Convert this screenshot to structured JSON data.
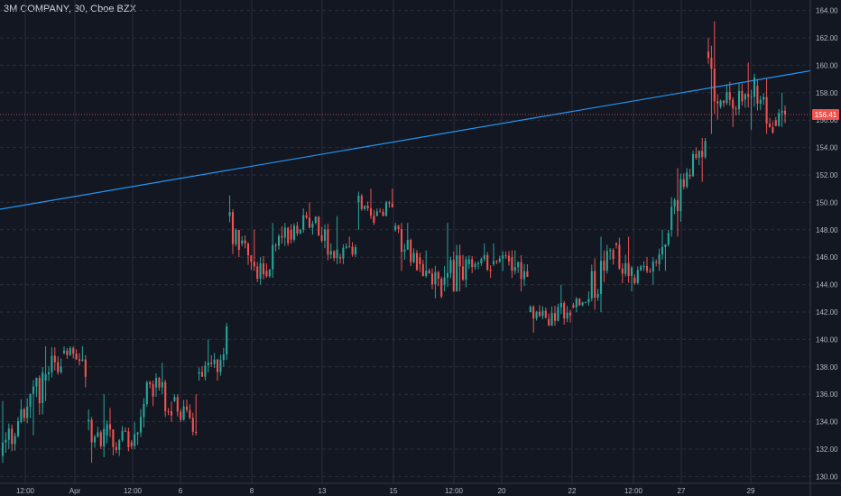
{
  "header": {
    "title": "3M COMPANY, 30, Cboe BZX"
  },
  "colors": {
    "background": "#131722",
    "grid": "#2a2e39",
    "up": "#26a69a",
    "down": "#ef5350",
    "trendline": "#2196f3",
    "text": "#b2b5be"
  },
  "chart_data": {
    "type": "candlestick",
    "symbol": "3M COMPANY",
    "interval": "30",
    "exchange": "Cboe BZX",
    "y_ticks": [
      "130.00",
      "132.00",
      "134.00",
      "136.00",
      "138.00",
      "140.00",
      "142.00",
      "144.00",
      "146.00",
      "148.00",
      "150.00",
      "152.00",
      "154.00",
      "156.00",
      "158.00",
      "160.00",
      "162.00",
      "164.00"
    ],
    "x_ticks": [
      "12:00",
      "Apr",
      "12:00",
      "6",
      "8",
      "13",
      "15",
      "12:00",
      "20",
      "22",
      "12:00",
      "27",
      "29"
    ],
    "ylim": [
      129.5,
      164.5
    ],
    "last_price_label": "156.41",
    "last_price": 156.41,
    "trendline": {
      "start_price": 149.5,
      "end_price": 159.6
    },
    "grid": true,
    "segments": [
      {
        "open": 131.5,
        "close": 134.0,
        "high": 135.5,
        "low": 131.0,
        "count": 6
      },
      {
        "open": 134.0,
        "close": 137.0,
        "high": 138.0,
        "low": 133.0,
        "count": 8
      },
      {
        "open": 137.0,
        "close": 139.0,
        "high": 139.5,
        "low": 135.5,
        "count": 6
      },
      {
        "open": 139.0,
        "close": 138.0,
        "high": 139.5,
        "low": 136.5,
        "count": 8
      },
      {
        "open": 134.0,
        "close": 133.0,
        "high": 136.0,
        "low": 131.0,
        "count": 6
      },
      {
        "open": 133.0,
        "close": 132.5,
        "high": 135.0,
        "low": 131.5,
        "count": 8
      },
      {
        "open": 132.5,
        "close": 136.5,
        "high": 137.0,
        "low": 132.0,
        "count": 8
      },
      {
        "open": 136.5,
        "close": 135.5,
        "high": 138.3,
        "low": 134.0,
        "count": 6
      },
      {
        "open": 135.5,
        "close": 133.5,
        "high": 136.0,
        "low": 133.0,
        "count": 8
      },
      {
        "open": 137.5,
        "close": 138.5,
        "high": 140.0,
        "low": 137.0,
        "count": 8
      },
      {
        "open": 138.5,
        "close": 141.0,
        "high": 141.2,
        "low": 138.0,
        "count": 2
      },
      {
        "open": 149.0,
        "close": 147.0,
        "high": 150.5,
        "low": 146.0,
        "count": 4
      },
      {
        "open": 147.0,
        "close": 145.0,
        "high": 148.0,
        "low": 144.0,
        "count": 8
      },
      {
        "open": 145.0,
        "close": 148.0,
        "high": 148.5,
        "low": 144.5,
        "count": 8
      },
      {
        "open": 148.0,
        "close": 148.5,
        "high": 150.0,
        "low": 147.0,
        "count": 8
      },
      {
        "open": 148.5,
        "close": 146.0,
        "high": 149.0,
        "low": 145.5,
        "count": 8
      },
      {
        "open": 146.0,
        "close": 146.5,
        "high": 147.5,
        "low": 145.5,
        "count": 6
      },
      {
        "open": 150.0,
        "close": 149.0,
        "high": 151.0,
        "low": 148.0,
        "count": 6
      },
      {
        "open": 149.0,
        "close": 150.0,
        "high": 151.0,
        "low": 149.0,
        "count": 6
      },
      {
        "open": 148.0,
        "close": 146.0,
        "high": 148.5,
        "low": 145.0,
        "count": 8
      },
      {
        "open": 146.0,
        "close": 144.0,
        "high": 146.5,
        "low": 143.0,
        "count": 8
      },
      {
        "open": 144.0,
        "close": 145.5,
        "high": 148.5,
        "low": 143.5,
        "count": 8
      },
      {
        "open": 145.5,
        "close": 145.5,
        "high": 147.0,
        "low": 144.5,
        "count": 8
      },
      {
        "open": 145.5,
        "close": 146.0,
        "high": 147.0,
        "low": 145.0,
        "count": 6
      },
      {
        "open": 146.0,
        "close": 144.0,
        "high": 146.5,
        "low": 143.5,
        "count": 6
      },
      {
        "open": 142.0,
        "close": 141.5,
        "high": 142.5,
        "low": 140.5,
        "count": 6
      },
      {
        "open": 141.5,
        "close": 142.5,
        "high": 144.0,
        "low": 141.0,
        "count": 8
      },
      {
        "open": 142.5,
        "close": 143.0,
        "high": 143.5,
        "low": 142.0,
        "count": 6
      },
      {
        "open": 143.0,
        "close": 147.0,
        "high": 147.5,
        "low": 142.0,
        "count": 8
      },
      {
        "open": 147.0,
        "close": 144.5,
        "high": 147.5,
        "low": 143.5,
        "count": 6
      },
      {
        "open": 144.5,
        "close": 145.5,
        "high": 146.0,
        "low": 144.0,
        "count": 8
      },
      {
        "open": 145.5,
        "close": 147.5,
        "high": 148.0,
        "low": 145.0,
        "count": 4
      },
      {
        "open": 148.0,
        "close": 152.0,
        "high": 152.5,
        "low": 147.5,
        "count": 6
      },
      {
        "open": 152.0,
        "close": 154.3,
        "high": 154.7,
        "low": 151.5,
        "count": 6
      },
      {
        "open": 161.0,
        "close": 157.0,
        "high": 163.2,
        "low": 155.0,
        "count": 4
      },
      {
        "open": 157.0,
        "close": 157.5,
        "high": 158.8,
        "low": 155.5,
        "count": 8
      },
      {
        "open": 157.5,
        "close": 158.5,
        "high": 160.2,
        "low": 155.3,
        "count": 4
      },
      {
        "open": 158.5,
        "close": 156.0,
        "high": 159.0,
        "low": 155.0,
        "count": 6
      },
      {
        "open": 156.0,
        "close": 156.41,
        "high": 158.0,
        "low": 155.5,
        "count": 4
      }
    ]
  }
}
